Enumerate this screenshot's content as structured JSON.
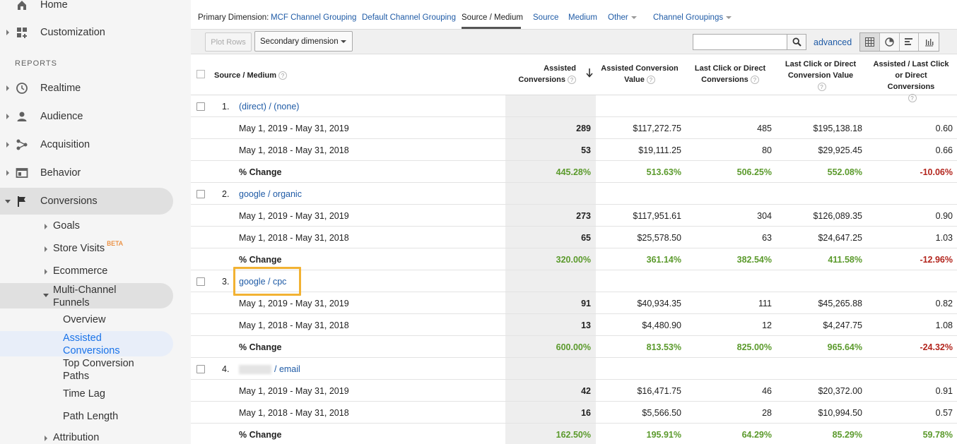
{
  "sidebar": {
    "home": "Home",
    "customization": "Customization",
    "reports_label": "REPORTS",
    "realtime": "Realtime",
    "audience": "Audience",
    "acquisition": "Acquisition",
    "behavior": "Behavior",
    "conversions": "Conversions",
    "goals": "Goals",
    "store_visits": "Store Visits",
    "beta": "BETA",
    "ecommerce": "Ecommerce",
    "mcf_line1": "Multi-Channel",
    "mcf_line2": "Funnels",
    "overview": "Overview",
    "assisted_line1": "Assisted",
    "assisted_line2": "Conversions",
    "top_paths_line1": "Top Conversion",
    "top_paths_line2": "Paths",
    "time_lag": "Time Lag",
    "path_length": "Path Length",
    "attribution": "Attribution"
  },
  "dimensions": {
    "label": "Primary Dimension:",
    "mcf": "MCF Channel Grouping",
    "default": "Default Channel Grouping",
    "source_medium": "Source / Medium",
    "source": "Source",
    "medium": "Medium",
    "other": "Other",
    "groupings": "Channel Groupings"
  },
  "toolbar": {
    "plot_rows": "Plot Rows",
    "secondary": "Secondary dimension",
    "search_placeholder": "",
    "advanced": "advanced"
  },
  "table": {
    "headers": {
      "source": "Source / Medium",
      "c1a": "Assisted",
      "c1b": "Conversions",
      "c2a": "Assisted Conversion",
      "c2b": "Value",
      "c3a": "Last Click or Direct",
      "c3b": "Conversions",
      "c4a": "Last Click or Direct",
      "c4b": "Conversion Value",
      "c5a": "Assisted / Last Click",
      "c5b": "or Direct Conversions"
    },
    "groups": [
      {
        "num": "1.",
        "name": "(direct) / (none)",
        "rows": [
          {
            "label": "May 1, 2019 - May 31, 2019",
            "v": [
              "289",
              "$117,272.75",
              "485",
              "$195,138.18",
              "0.60"
            ]
          },
          {
            "label": "May 1, 2018 - May 31, 2018",
            "v": [
              "53",
              "$19,111.25",
              "80",
              "$29,925.45",
              "0.66"
            ]
          },
          {
            "label": "% Change",
            "v": [
              "445.28%",
              "513.63%",
              "506.25%",
              "552.08%",
              "-10.06%"
            ]
          }
        ]
      },
      {
        "num": "2.",
        "name": "google / organic",
        "rows": [
          {
            "label": "May 1, 2019 - May 31, 2019",
            "v": [
              "273",
              "$117,951.61",
              "304",
              "$126,089.35",
              "0.90"
            ]
          },
          {
            "label": "May 1, 2018 - May 31, 2018",
            "v": [
              "65",
              "$25,578.50",
              "63",
              "$24,647.25",
              "1.03"
            ]
          },
          {
            "label": "% Change",
            "v": [
              "320.00%",
              "361.14%",
              "382.54%",
              "411.58%",
              "-12.96%"
            ]
          }
        ]
      },
      {
        "num": "3.",
        "name": "google / cpc",
        "rows": [
          {
            "label": "May 1, 2019 - May 31, 2019",
            "v": [
              "91",
              "$40,934.35",
              "111",
              "$45,265.88",
              "0.82"
            ]
          },
          {
            "label": "May 1, 2018 - May 31, 2018",
            "v": [
              "13",
              "$4,480.90",
              "12",
              "$4,247.75",
              "1.08"
            ]
          },
          {
            "label": "% Change",
            "v": [
              "600.00%",
              "813.53%",
              "825.00%",
              "965.64%",
              "-24.32%"
            ]
          }
        ]
      },
      {
        "num": "4.",
        "name": "/ email",
        "rows": [
          {
            "label": "May 1, 2019 - May 31, 2019",
            "v": [
              "42",
              "$16,471.75",
              "46",
              "$20,372.00",
              "0.91"
            ]
          },
          {
            "label": "May 1, 2018 - May 31, 2018",
            "v": [
              "16",
              "$5,566.50",
              "28",
              "$10,994.50",
              "0.57"
            ]
          },
          {
            "label": "% Change",
            "v": [
              "162.50%",
              "195.91%",
              "64.29%",
              "85.29%",
              "59.78%"
            ]
          }
        ]
      }
    ]
  },
  "colors": {
    "link": "#1f5ba6",
    "positive": "#5b9a2c",
    "negative": "#b3261e",
    "highlight": "#f2b233"
  }
}
